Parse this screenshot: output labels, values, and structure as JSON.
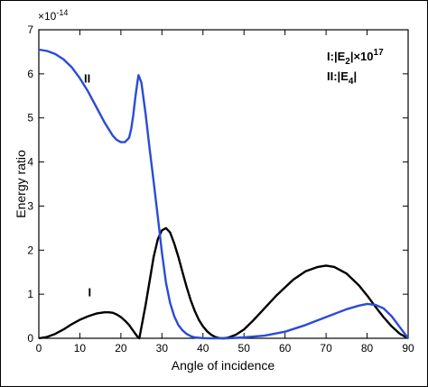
{
  "chart_data": {
    "type": "line",
    "xlabel": "Angle of incidence",
    "ylabel": "Energy ratio",
    "y_scale_label": "× 10^-14",
    "y_exponent_text": "×10",
    "y_exponent_power": "-14",
    "xlim": [
      0,
      90
    ],
    "ylim": [
      0,
      7
    ],
    "x_ticks": [
      0,
      10,
      20,
      30,
      40,
      50,
      60,
      70,
      80,
      90
    ],
    "y_ticks": [
      0,
      1,
      2,
      3,
      4,
      5,
      6,
      7
    ],
    "grid": false,
    "legend": {
      "position": "top-right",
      "line1": {
        "prefix": "I:|E",
        "sub": "2",
        "mid": "|×10",
        "sup": "17"
      },
      "line2": {
        "prefix": "II:|E",
        "sub": "4",
        "mid": "|"
      }
    },
    "curve_labels": [
      {
        "text": "II",
        "x": 11,
        "y": 5.8
      },
      {
        "text": "I",
        "x": 12,
        "y": 0.95
      }
    ],
    "series": [
      {
        "name": "I",
        "color": "#000000",
        "x": [
          0,
          2,
          4,
          6,
          8,
          10,
          12,
          14,
          16,
          17,
          18,
          19,
          20,
          21,
          22,
          23,
          24,
          24.5,
          25,
          26,
          27,
          28,
          29,
          30,
          31,
          32,
          33,
          34,
          35,
          36,
          37,
          38,
          39,
          40,
          41,
          42,
          43,
          44,
          45,
          46,
          48,
          50,
          52,
          55,
          58,
          62,
          65,
          68,
          70,
          72,
          75,
          78,
          80,
          82,
          84,
          86,
          88,
          90
        ],
        "y": [
          0,
          0.03,
          0.1,
          0.2,
          0.32,
          0.42,
          0.5,
          0.56,
          0.59,
          0.59,
          0.58,
          0.54,
          0.48,
          0.4,
          0.3,
          0.17,
          0.04,
          0.0,
          0.25,
          0.75,
          1.3,
          1.85,
          2.25,
          2.45,
          2.5,
          2.4,
          2.15,
          1.85,
          1.5,
          1.17,
          0.87,
          0.62,
          0.42,
          0.27,
          0.16,
          0.08,
          0.03,
          0.005,
          0.0,
          0.01,
          0.08,
          0.2,
          0.38,
          0.68,
          0.98,
          1.33,
          1.52,
          1.62,
          1.65,
          1.62,
          1.47,
          1.2,
          0.97,
          0.72,
          0.48,
          0.27,
          0.1,
          0.0
        ]
      },
      {
        "name": "II",
        "color": "#2a4bd7",
        "x": [
          0,
          2,
          4,
          6,
          8,
          10,
          12,
          14,
          16,
          18,
          19,
          20,
          21,
          22,
          22.5,
          23,
          23.5,
          24,
          24.3,
          25,
          26,
          27,
          28,
          29,
          30,
          31,
          32,
          33,
          34,
          35,
          36,
          37,
          38,
          40,
          42,
          44,
          46,
          48,
          50,
          55,
          60,
          65,
          70,
          75,
          78,
          80,
          82,
          84,
          86,
          88,
          90
        ],
        "y": [
          6.55,
          6.52,
          6.45,
          6.33,
          6.15,
          5.9,
          5.6,
          5.25,
          4.9,
          4.6,
          4.5,
          4.45,
          4.45,
          4.55,
          4.75,
          5.05,
          5.45,
          5.8,
          5.97,
          5.8,
          5.1,
          4.3,
          3.55,
          2.75,
          1.95,
          1.25,
          0.8,
          0.5,
          0.3,
          0.18,
          0.1,
          0.05,
          0.02,
          0.005,
          0.0,
          0.0,
          0.0,
          0.01,
          0.02,
          0.06,
          0.15,
          0.3,
          0.48,
          0.66,
          0.74,
          0.78,
          0.76,
          0.68,
          0.5,
          0.25,
          0.0
        ]
      }
    ]
  }
}
